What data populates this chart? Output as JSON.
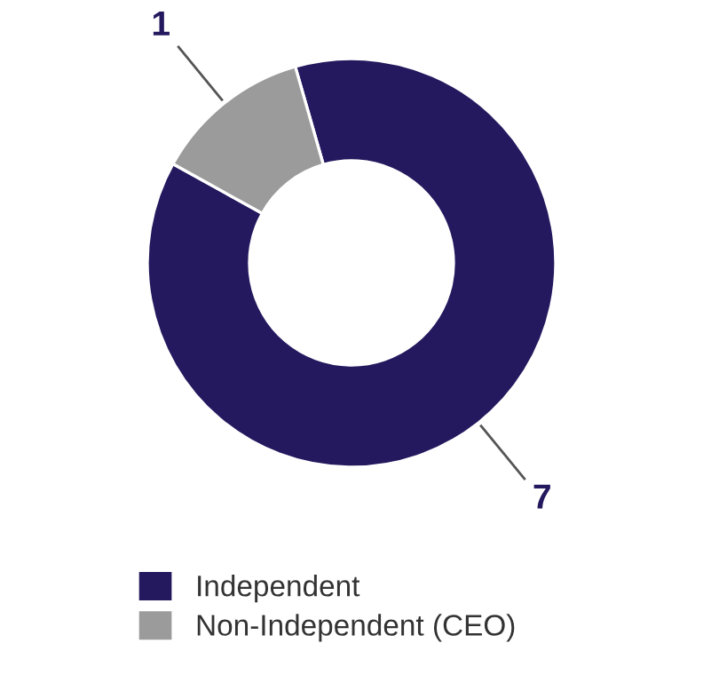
{
  "chart_data": {
    "type": "donut",
    "categories": [
      "Independent",
      "Non-Independent (CEO)"
    ],
    "values": [
      7,
      1
    ],
    "colors": [
      "#24195e",
      "#9b9b9b"
    ],
    "data_labels": true,
    "legend": "bottom"
  }
}
